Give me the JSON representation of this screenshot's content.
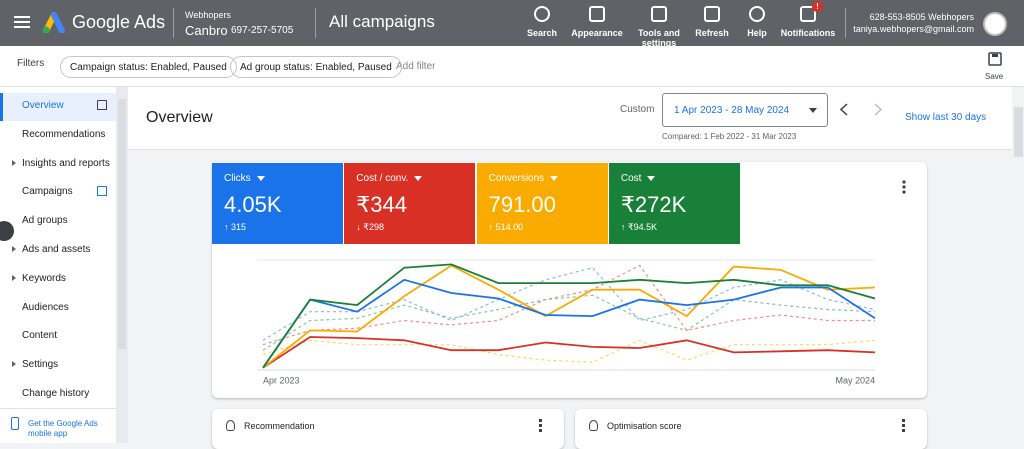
{
  "header": {
    "product": "Google Ads",
    "account_manager": "Webhopers",
    "account_name": "Canbro",
    "account_id": "697-257-5705",
    "page_title": "All campaigns",
    "tools": [
      {
        "label": "Search"
      },
      {
        "label": "Appearance"
      },
      {
        "label": "Tools and settings"
      },
      {
        "label": "Refresh"
      },
      {
        "label": "Help"
      },
      {
        "label": "Notifications",
        "badge": "!"
      }
    ],
    "user": {
      "phone": "628-553-8505 Webhopers",
      "email": "taniya.webhopers@gmail.com"
    }
  },
  "filters": {
    "label": "Filters",
    "chips": [
      "Campaign status: Enabled, Paused",
      "Ad group status: Enabled, Paused"
    ],
    "add": "Add filter",
    "save": "Save"
  },
  "nav": {
    "items": [
      {
        "label": "Overview",
        "active": true,
        "icon": true
      },
      {
        "label": "Recommendations"
      },
      {
        "label": "Insights and reports",
        "expandable": true
      },
      {
        "label": "Campaigns",
        "icon": true
      },
      {
        "label": "Ad groups"
      },
      {
        "label": "Ads and assets",
        "expandable": true
      },
      {
        "label": "Keywords",
        "expandable": true
      },
      {
        "label": "Audiences"
      },
      {
        "label": "Content"
      },
      {
        "label": "Settings",
        "expandable": true
      },
      {
        "label": "Change history"
      }
    ],
    "app_promo": "Get the Google Ads mobile app"
  },
  "overview": {
    "title": "Overview",
    "date_label": "Custom",
    "date_range": "1 Apr 2023 - 28 May 2024",
    "compared": "Compared: 1 Feb 2022 - 31 Mar 2023",
    "show_last": "Show last 30 days"
  },
  "metrics": [
    {
      "name": "Clicks",
      "value": "4.05K",
      "change": "↑ 315",
      "color": "#1a73e8"
    },
    {
      "name": "Cost / conv.",
      "value": "₹344",
      "change": "↓ ₹298",
      "color": "#d93025"
    },
    {
      "name": "Conversions",
      "value": "791.00",
      "change": "↑ 514.00",
      "color": "#f9ab00"
    },
    {
      "name": "Cost",
      "value": "₹272K",
      "change": "↑ ₹94.5K",
      "color": "#188038"
    }
  ],
  "chart": {
    "type": "line",
    "x_labels": [
      "Apr 2023",
      "May 2024"
    ],
    "ylim": [
      0,
      100
    ],
    "series": [
      {
        "color": "#81c995",
        "dashed": true,
        "values": [
          18,
          45,
          47,
          59,
          47,
          55,
          64,
          68,
          47,
          36,
          64,
          59,
          55,
          53
        ]
      },
      {
        "color": "#fdd663",
        "dashed": true,
        "values": [
          14,
          27,
          23,
          23,
          23,
          14,
          9,
          7,
          27,
          9,
          23,
          23,
          23,
          27
        ]
      },
      {
        "color": "#f28b82",
        "dashed": true,
        "values": [
          23,
          36,
          38,
          45,
          41,
          45,
          64,
          73,
          95,
          36,
          45,
          50,
          45,
          45
        ]
      },
      {
        "color": "#8ab4f8",
        "dashed": true,
        "values": [
          27,
          53,
          53,
          64,
          45,
          64,
          82,
          93,
          45,
          55,
          75,
          82,
          64,
          55
        ]
      },
      {
        "color": "#d93025",
        "values": [
          2,
          30,
          29,
          27,
          18,
          18,
          25,
          21,
          20,
          27,
          16,
          17,
          18,
          16
        ]
      },
      {
        "color": "#f9ab00",
        "values": [
          2,
          36,
          35,
          67,
          95,
          73,
          49,
          73,
          73,
          49,
          94,
          91,
          73,
          75
        ]
      },
      {
        "color": "#1a73e8",
        "values": [
          2,
          64,
          53,
          82,
          70,
          65,
          50,
          49,
          64,
          59,
          64,
          75,
          75,
          47
        ]
      },
      {
        "color": "#188038",
        "values": [
          2,
          64,
          59,
          93,
          96,
          79,
          79,
          79,
          82,
          79,
          82,
          77,
          77,
          65
        ]
      }
    ]
  },
  "cards": [
    "Recommendation",
    "Optimisation score"
  ]
}
